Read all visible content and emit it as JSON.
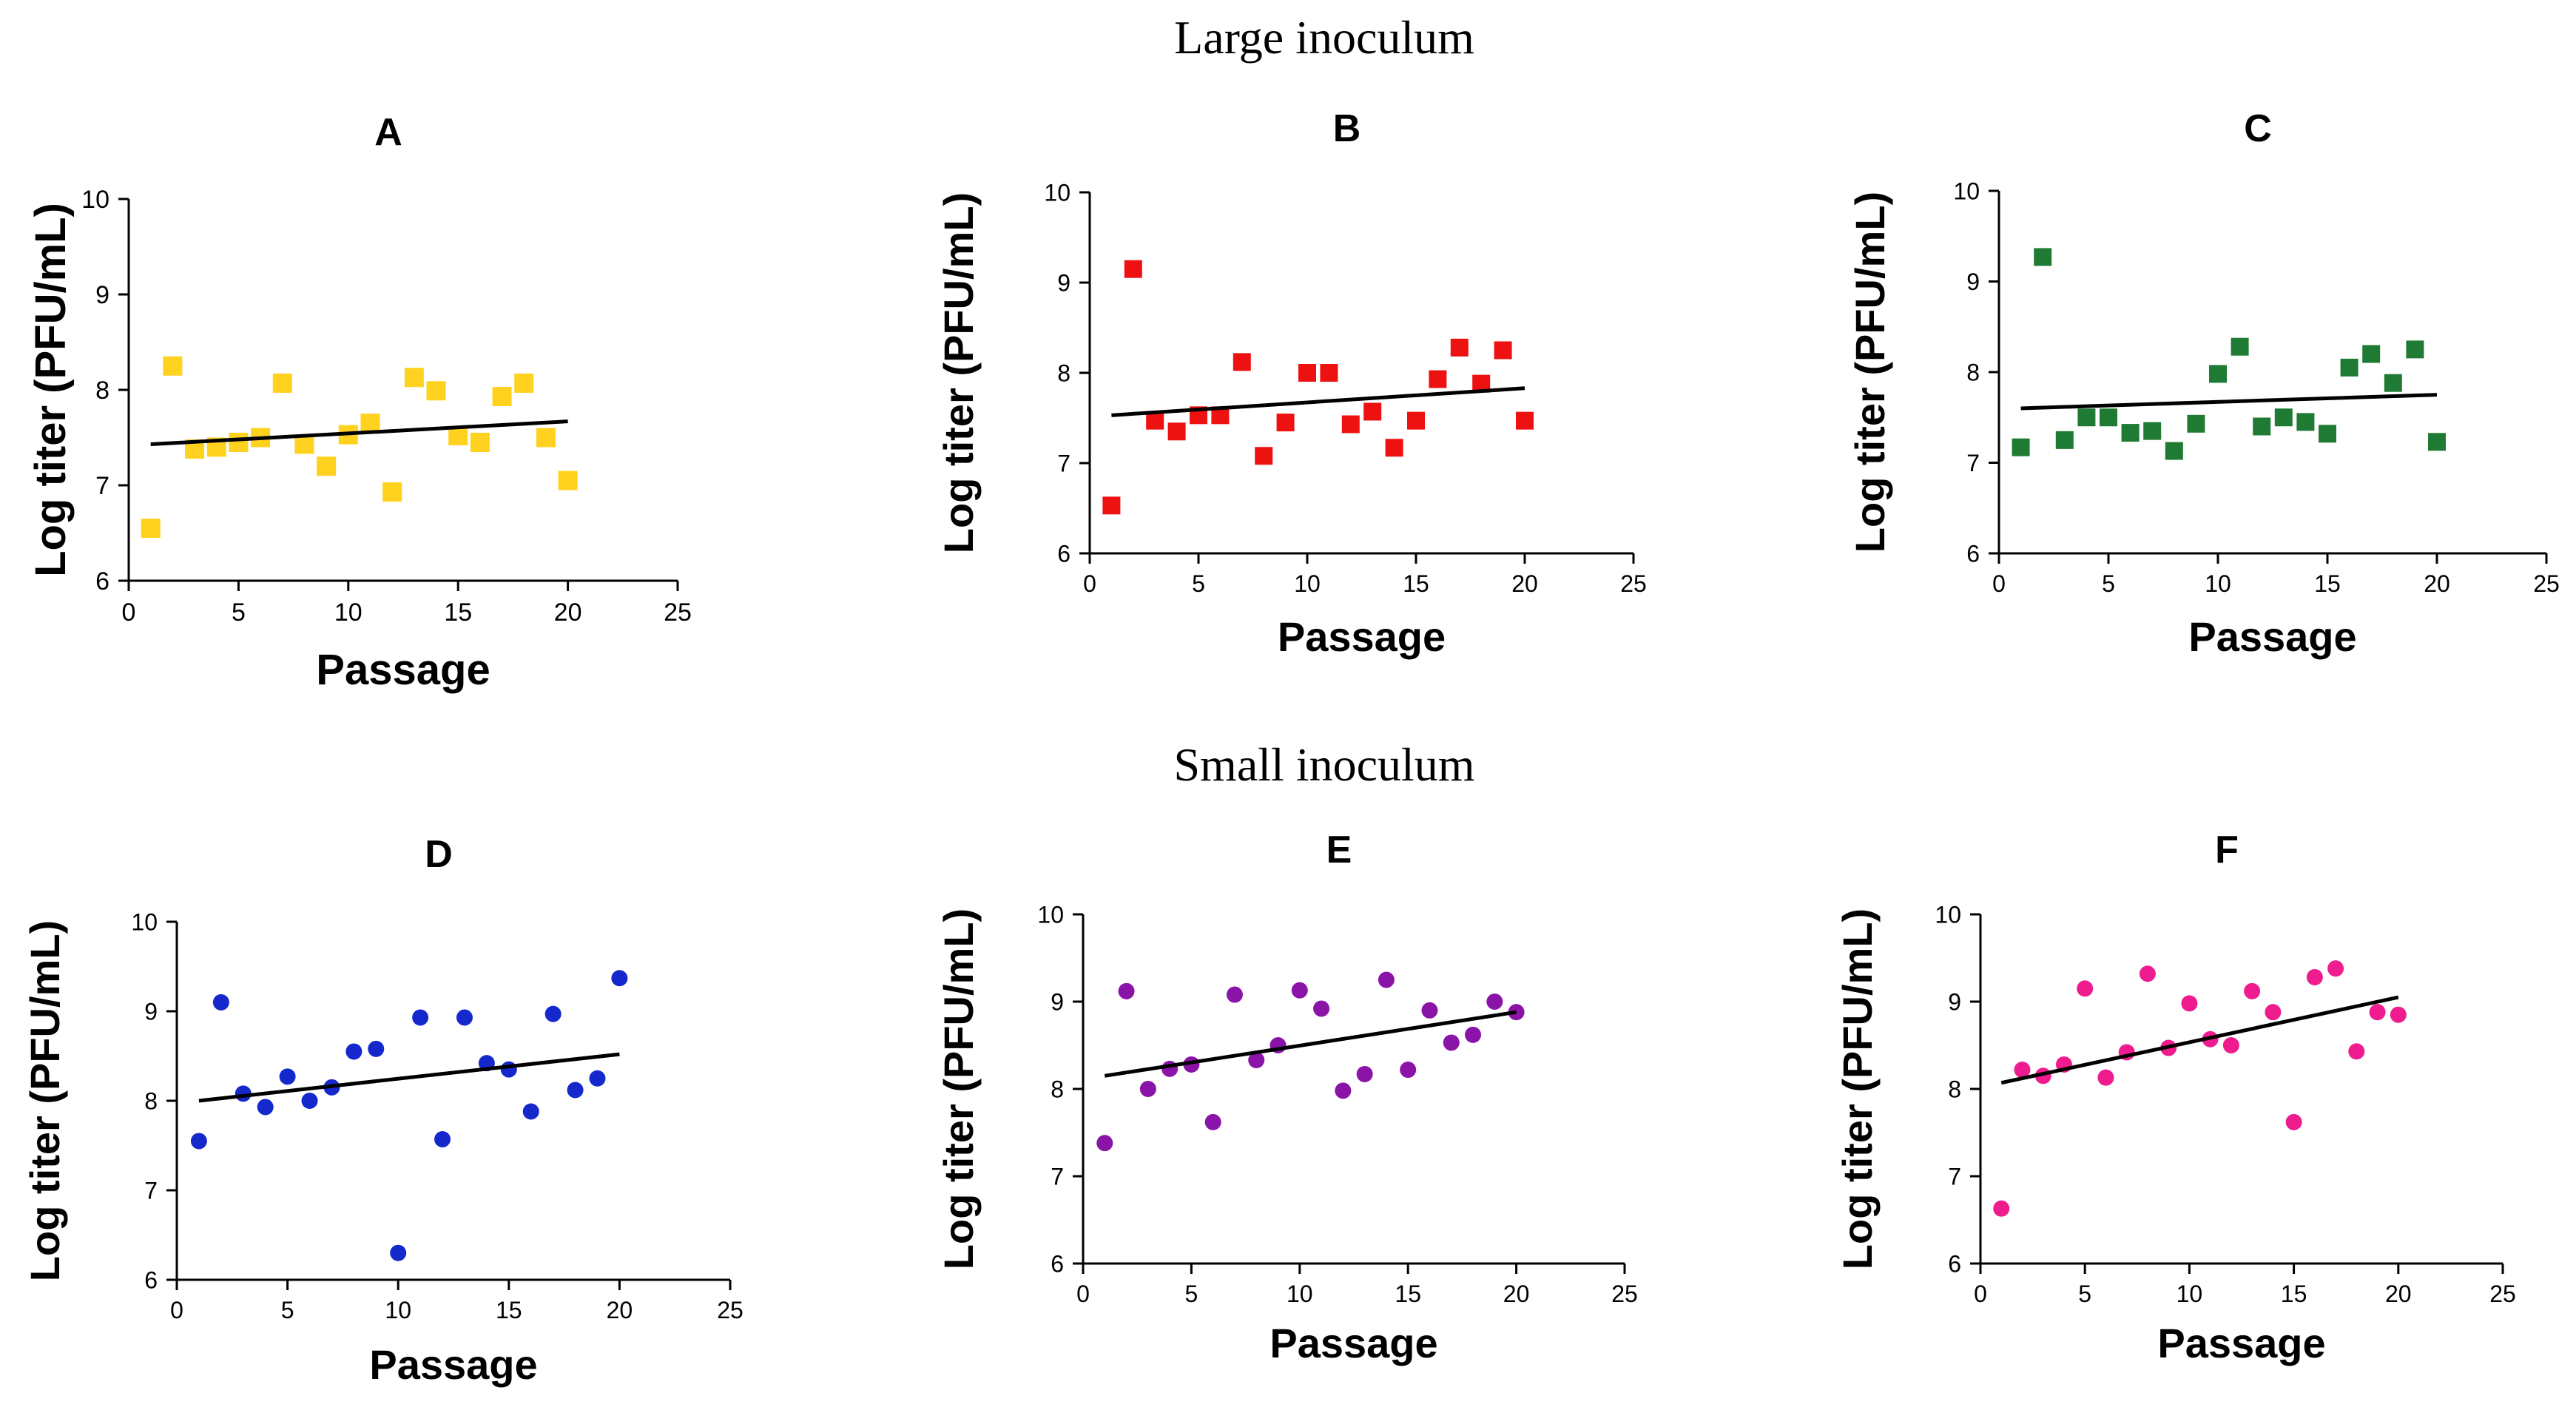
{
  "figure": {
    "section_titles": [
      "Large inoculum",
      "Small inoculum"
    ]
  },
  "chart_data": [
    {
      "id": "A",
      "type": "scatter",
      "title": "A",
      "group": "Large inoculum",
      "xlabel": "Passage",
      "ylabel": "Log titer (PFU/mL)",
      "xlim": [
        0,
        25
      ],
      "ylim": [
        6,
        10
      ],
      "xticks": [
        0,
        5,
        10,
        15,
        20,
        25
      ],
      "yticks": [
        6,
        7,
        8,
        9,
        10
      ],
      "marker": "square",
      "color": "#FFD21F",
      "x": [
        1,
        2,
        3,
        4,
        5,
        6,
        7,
        8,
        9,
        10,
        11,
        12,
        13,
        14,
        15,
        16,
        17,
        18,
        19,
        20
      ],
      "y": [
        6.55,
        8.25,
        7.38,
        7.4,
        7.45,
        7.5,
        8.07,
        7.43,
        7.2,
        7.53,
        7.65,
        6.93,
        8.13,
        7.99,
        7.52,
        7.45,
        7.93,
        8.07,
        7.5,
        7.05
      ],
      "trendline": {
        "x": [
          1,
          20
        ],
        "y": [
          7.43,
          7.67
        ]
      }
    },
    {
      "id": "B",
      "type": "scatter",
      "title": "B",
      "group": "Large inoculum",
      "xlabel": "Passage",
      "ylabel": "Log titer (PFU/mL)",
      "xlim": [
        0,
        25
      ],
      "ylim": [
        6,
        10
      ],
      "xticks": [
        0,
        5,
        10,
        15,
        20,
        25
      ],
      "yticks": [
        6,
        7,
        8,
        9,
        10
      ],
      "marker": "square",
      "color": "#EE1111",
      "x": [
        1,
        2,
        3,
        4,
        5,
        6,
        7,
        8,
        9,
        10,
        11,
        12,
        13,
        14,
        15,
        16,
        17,
        18,
        19,
        20
      ],
      "y": [
        6.53,
        9.15,
        7.47,
        7.35,
        7.53,
        7.53,
        8.12,
        7.08,
        7.45,
        8.0,
        8.0,
        7.43,
        7.57,
        7.17,
        7.47,
        7.93,
        8.28,
        7.88,
        8.25,
        7.47
      ],
      "trendline": {
        "x": [
          1,
          20
        ],
        "y": [
          7.53,
          7.83
        ]
      }
    },
    {
      "id": "C",
      "type": "scatter",
      "title": "C",
      "group": "Large inoculum",
      "xlabel": "Passage",
      "ylabel": "Log titer (PFU/mL)",
      "xlim": [
        0,
        25
      ],
      "ylim": [
        6,
        10
      ],
      "xticks": [
        0,
        5,
        10,
        15,
        20,
        25
      ],
      "yticks": [
        6,
        7,
        8,
        9,
        10
      ],
      "marker": "square",
      "color": "#1F7A33",
      "x": [
        1,
        2,
        3,
        4,
        5,
        6,
        7,
        8,
        9,
        10,
        11,
        12,
        13,
        14,
        15,
        16,
        17,
        18,
        19,
        20
      ],
      "y": [
        7.17,
        9.27,
        7.25,
        7.5,
        7.5,
        7.33,
        7.35,
        7.13,
        7.43,
        7.98,
        8.28,
        7.4,
        7.5,
        7.45,
        7.32,
        8.05,
        8.2,
        7.88,
        8.25,
        7.23
      ],
      "trendline": {
        "x": [
          1,
          20
        ],
        "y": [
          7.6,
          7.75
        ]
      }
    },
    {
      "id": "D",
      "type": "scatter",
      "title": "D",
      "group": "Small inoculum",
      "xlabel": "Passage",
      "ylabel": "Log titer (PFU/mL)",
      "xlim": [
        0,
        25
      ],
      "ylim": [
        6,
        10
      ],
      "xticks": [
        0,
        5,
        10,
        15,
        20,
        25
      ],
      "yticks": [
        6,
        7,
        8,
        9,
        10
      ],
      "marker": "circle",
      "color": "#1428CC",
      "x": [
        1,
        2,
        3,
        4,
        5,
        6,
        7,
        8,
        9,
        10,
        11,
        12,
        13,
        14,
        15,
        16,
        17,
        18,
        19,
        20
      ],
      "y": [
        7.55,
        9.1,
        8.08,
        7.93,
        8.27,
        8.0,
        8.15,
        8.55,
        8.58,
        6.3,
        8.93,
        7.57,
        8.93,
        8.42,
        8.35,
        7.88,
        8.97,
        8.12,
        8.25,
        9.37
      ],
      "trendline": {
        "x": [
          1,
          20
        ],
        "y": [
          8.0,
          8.52
        ]
      }
    },
    {
      "id": "E",
      "type": "scatter",
      "title": "E",
      "group": "Small inoculum",
      "xlabel": "Passage",
      "ylabel": "Log titer (PFU/mL)",
      "xlim": [
        0,
        25
      ],
      "ylim": [
        6,
        10
      ],
      "xticks": [
        0,
        5,
        10,
        15,
        20,
        25
      ],
      "yticks": [
        6,
        7,
        8,
        9,
        10
      ],
      "marker": "circle",
      "color": "#8A14A8",
      "x": [
        1,
        2,
        3,
        4,
        5,
        6,
        7,
        8,
        9,
        10,
        11,
        12,
        13,
        14,
        15,
        16,
        17,
        18,
        19,
        20
      ],
      "y": [
        7.38,
        9.12,
        8.0,
        8.23,
        8.28,
        7.62,
        9.08,
        8.33,
        8.5,
        9.13,
        8.92,
        7.98,
        8.17,
        9.25,
        8.22,
        8.9,
        8.53,
        8.62,
        9.0,
        8.88
      ],
      "trendline": {
        "x": [
          1,
          20
        ],
        "y": [
          8.15,
          8.88
        ]
      }
    },
    {
      "id": "F",
      "type": "scatter",
      "title": "F",
      "group": "Small inoculum",
      "xlabel": "Passage",
      "ylabel": "Log titer (PFU/mL)",
      "xlim": [
        0,
        25
      ],
      "ylim": [
        6,
        10
      ],
      "xticks": [
        0,
        5,
        10,
        15,
        20,
        25
      ],
      "yticks": [
        6,
        7,
        8,
        9,
        10
      ],
      "marker": "circle",
      "color": "#EE1C8E",
      "x": [
        1,
        2,
        3,
        4,
        5,
        6,
        7,
        8,
        9,
        10,
        11,
        12,
        13,
        14,
        15,
        16,
        17,
        18,
        19,
        20
      ],
      "y": [
        6.63,
        8.22,
        8.15,
        8.28,
        9.15,
        8.13,
        8.42,
        9.32,
        8.47,
        8.98,
        8.57,
        8.5,
        9.12,
        8.88,
        7.62,
        9.28,
        9.38,
        8.43,
        8.88,
        8.85
      ],
      "trendline": {
        "x": [
          1,
          20
        ],
        "y": [
          8.07,
          9.05
        ]
      }
    }
  ]
}
